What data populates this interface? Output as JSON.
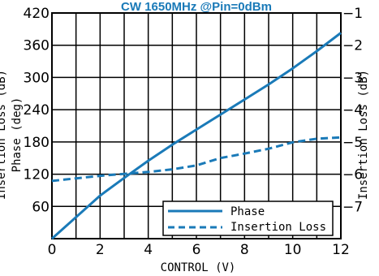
{
  "colors": {
    "series": "#1a7ab8",
    "title": "#1a7ab8",
    "grid": "#000000",
    "axes": "#000000"
  },
  "chart_data": {
    "type": "line",
    "title": "CW 1650MHz @Pin=0dBm",
    "xlabel": "CONTROL (V)",
    "ylabel_left": "Phase (deg)",
    "ylabel_left_clipped": "Insertion Loss (dB)",
    "ylabel_right": "Insertion Loss (dB)",
    "xlim": [
      0,
      12
    ],
    "ylim_left": [
      0,
      420
    ],
    "ylim_right": [
      -8,
      -1
    ],
    "x_ticks": [
      0,
      2,
      4,
      6,
      8,
      10,
      12
    ],
    "y_ticks_left": [
      60,
      120,
      180,
      240,
      300,
      360,
      420
    ],
    "y_ticks_right": [
      -1,
      -2,
      -3,
      -4,
      -5,
      -6,
      -7
    ],
    "grid": true,
    "legend_position": "bottom-right",
    "series": [
      {
        "name": "Phase",
        "axis": "left",
        "style": "solid",
        "x": [
          0,
          1,
          2,
          3,
          4,
          5,
          6,
          7,
          8,
          9,
          10,
          11,
          12
        ],
        "y": [
          0,
          40,
          80,
          113,
          145,
          175,
          203,
          231,
          259,
          287,
          317,
          349,
          383
        ]
      },
      {
        "name": "Insertion Loss",
        "axis": "right",
        "style": "dashed",
        "x": [
          0,
          1,
          2,
          3,
          4,
          5,
          6,
          7,
          8,
          9,
          10,
          11,
          12
        ],
        "y": [
          -6.21,
          -6.13,
          -6.05,
          -5.99,
          -5.93,
          -5.85,
          -5.73,
          -5.5,
          -5.36,
          -5.21,
          -5.01,
          -4.9,
          -4.86
        ]
      }
    ]
  }
}
